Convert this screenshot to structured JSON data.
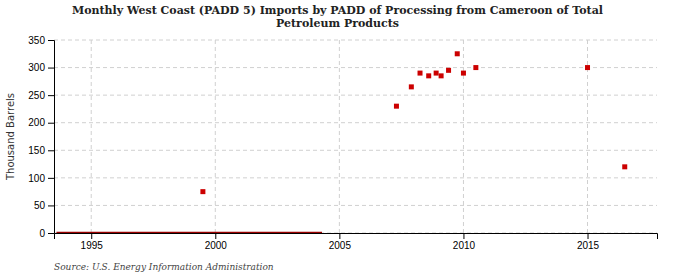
{
  "chart_data": {
    "type": "scatter",
    "title": "Monthly West Coast (PADD 5) Imports by PADD of Processing from Cameroon of Total\nPetroleum Products",
    "ylabel": "Thousand Barrels",
    "source": "Source: U.S. Energy Information Administration",
    "xlim": [
      1993.5,
      2017.8
    ],
    "ylim": [
      0,
      350
    ],
    "xticks": [
      1995,
      2000,
      2005,
      2010,
      2015
    ],
    "yticks": [
      0,
      50,
      100,
      150,
      200,
      250,
      300,
      350
    ],
    "grid": true,
    "series": [
      {
        "type": "line",
        "color": "#990000",
        "line_style": "solid",
        "x": [
          1993.6,
          2004.3
        ],
        "values": [
          0,
          0
        ]
      },
      {
        "type": "scatter",
        "color": "#cc0000",
        "marker": "square",
        "x": [
          1999.5,
          2007.3,
          2007.9,
          2008.25,
          2008.6,
          2008.9,
          2009.1,
          2009.4,
          2009.75,
          2010.0,
          2010.5,
          2015.0,
          2016.5
        ],
        "values": [
          75,
          230,
          265,
          290,
          285,
          290,
          285,
          295,
          325,
          290,
          300,
          300,
          120
        ]
      }
    ]
  }
}
